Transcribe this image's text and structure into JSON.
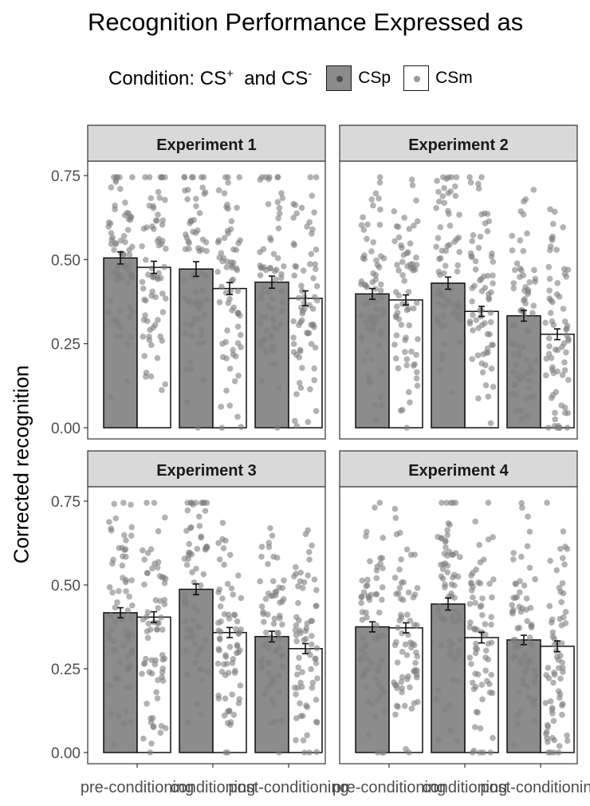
{
  "title": "Recognition Performance Expressed as",
  "legend": {
    "prefix": "Condition:  CS",
    "sup_plus": "+",
    "and_text": "and  CS",
    "sup_minus": "-",
    "items": [
      {
        "key": "CSp",
        "label": "CSp",
        "fill": "#8c8c8c",
        "dot": "#4d4d4d"
      },
      {
        "key": "CSm",
        "label": "CSm",
        "fill": "#ffffff",
        "dot": "#999999"
      }
    ]
  },
  "colors": {
    "csp_bar": "#8c8c8c",
    "csm_bar": "#ffffff",
    "points": "#7f7f7f",
    "strip_bg": "#d9d9d9",
    "panel_border": "#333333"
  },
  "chart_data": {
    "type": "bar",
    "ylabel": "Corrected recognition",
    "ylim": [
      0,
      0.78
    ],
    "yticks": [
      "0.00",
      "0.25",
      "0.50",
      "0.75"
    ],
    "categories": [
      "pre-conditioning",
      "conditioning",
      "post-conditioning"
    ],
    "legend_position": "top",
    "grid": false,
    "panels": [
      {
        "title": "Experiment 1",
        "series": [
          {
            "name": "CSp",
            "values": [
              0.505,
              0.472,
              0.433
            ],
            "se": [
              0.018,
              0.022,
              0.018
            ]
          },
          {
            "name": "CSm",
            "values": [
              0.477,
              0.414,
              0.385
            ],
            "se": [
              0.018,
              0.018,
              0.022
            ]
          }
        ]
      },
      {
        "title": "Experiment 2",
        "series": [
          {
            "name": "CSp",
            "values": [
              0.398,
              0.43,
              0.333
            ],
            "se": [
              0.016,
              0.018,
              0.016
            ]
          },
          {
            "name": "CSm",
            "values": [
              0.38,
              0.346,
              0.278
            ],
            "se": [
              0.015,
              0.015,
              0.016
            ]
          }
        ]
      },
      {
        "title": "Experiment 3",
        "series": [
          {
            "name": "CSp",
            "values": [
              0.417,
              0.487,
              0.346
            ],
            "se": [
              0.015,
              0.016,
              0.016
            ]
          },
          {
            "name": "CSm",
            "values": [
              0.404,
              0.358,
              0.31
            ],
            "se": [
              0.016,
              0.015,
              0.015
            ]
          }
        ]
      },
      {
        "title": "Experiment 4",
        "series": [
          {
            "name": "CSp",
            "values": [
              0.375,
              0.443,
              0.336
            ],
            "se": [
              0.015,
              0.018,
              0.014
            ]
          },
          {
            "name": "CSm",
            "values": [
              0.372,
              0.343,
              0.317
            ],
            "se": [
              0.015,
              0.016,
              0.016
            ]
          }
        ]
      }
    ]
  }
}
